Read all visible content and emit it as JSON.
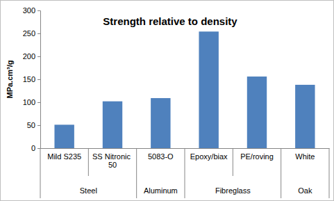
{
  "chart_data": {
    "type": "bar",
    "title": "Strength relative to density",
    "y_label": "MPa.cm³/g",
    "categories": [
      "Mild S235",
      "SS Nitronic 50",
      "5083-O",
      "Epoxy/biax",
      "PE/roving",
      "White"
    ],
    "category_groups": [
      "Steel",
      "Steel",
      "Aluminum",
      "Fibreglass",
      "Fibreglass",
      "Oak"
    ],
    "values": [
      51,
      102,
      109,
      254,
      156,
      138
    ],
    "color": "#4f81bd",
    "ylim": [
      0,
      300
    ],
    "yticks": [
      0,
      50,
      100,
      150,
      200,
      250,
      300
    ],
    "grid": false
  }
}
